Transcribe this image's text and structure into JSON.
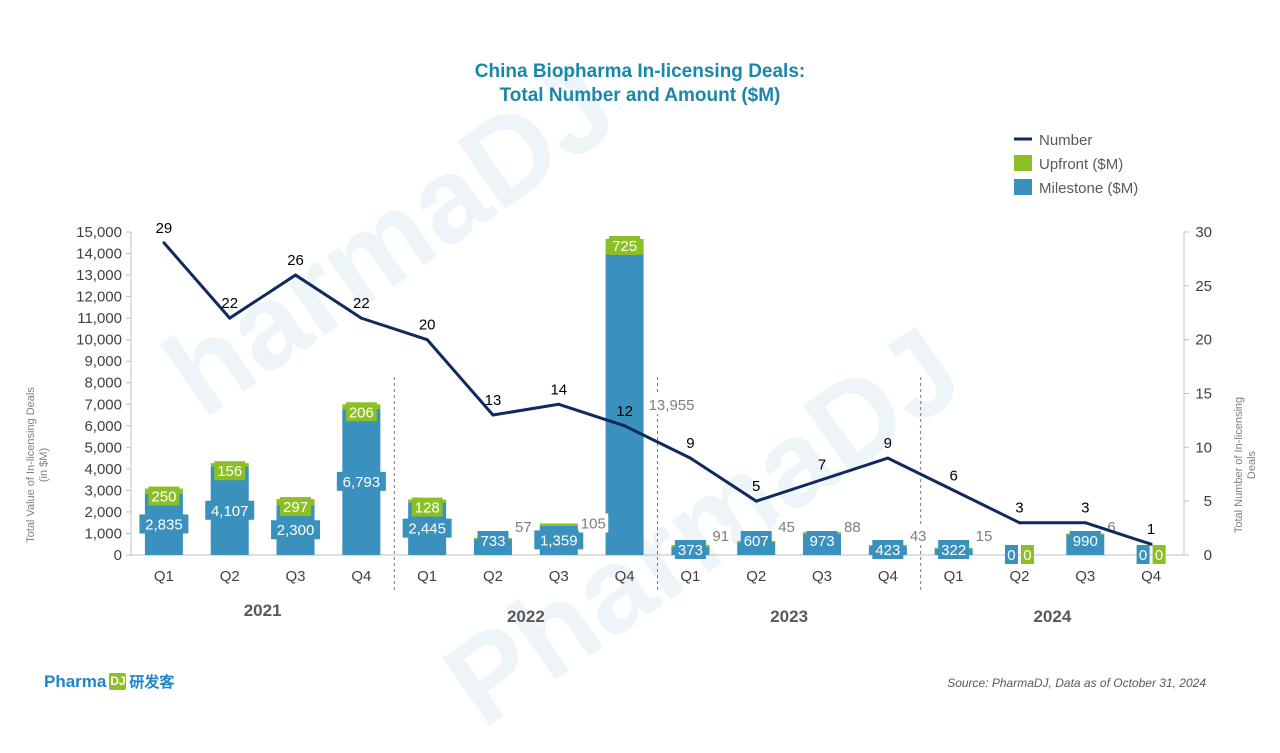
{
  "title_line1": "China Biopharma In-licensing Deals:",
  "title_line2": "Total Number and Amount ($M)",
  "source": "Source: PharmaDJ, Data as of October 31, 2024",
  "brand": {
    "name": "Pharma",
    "mark": "DJ",
    "cn": "研发客"
  },
  "colors": {
    "milestone": "#3a91bd",
    "upfront": "#8cbf26",
    "number": "#0f2a5e",
    "title": "#1a87a8"
  },
  "chart_data": {
    "type": "bar",
    "stacked": true,
    "categories": [
      "Q1",
      "Q2",
      "Q3",
      "Q4",
      "Q1",
      "Q2",
      "Q3",
      "Q4",
      "Q1",
      "Q2",
      "Q3",
      "Q4",
      "Q1",
      "Q2",
      "Q3",
      "Q4"
    ],
    "years": [
      {
        "label": "2021",
        "start": 0,
        "end": 3
      },
      {
        "label": "2022",
        "start": 4,
        "end": 7
      },
      {
        "label": "2023",
        "start": 8,
        "end": 11
      },
      {
        "label": "2024",
        "start": 12,
        "end": 15
      }
    ],
    "series": [
      {
        "name": "Milestone ($M)",
        "axis": "left",
        "values": [
          2835,
          4107,
          2300,
          6793,
          2445,
          733,
          1359,
          13955,
          373,
          607,
          973,
          423,
          322,
          0,
          990,
          0
        ]
      },
      {
        "name": "Upfront ($M)",
        "axis": "left",
        "values": [
          250,
          156,
          297,
          206,
          128,
          57,
          105,
          725,
          91,
          45,
          88,
          43,
          15,
          0,
          6,
          0
        ]
      },
      {
        "name": "Number",
        "type": "line",
        "axis": "right",
        "values": [
          29,
          22,
          26,
          22,
          20,
          13,
          14,
          12,
          9,
          5,
          7,
          9,
          6,
          3,
          3,
          1
        ]
      }
    ],
    "ylabel": "Total Value of In-licensing Deals (in $M)",
    "y2label": "Total Number of In-licensing Deals",
    "ylim": [
      0,
      15000
    ],
    "y2lim": [
      0,
      30
    ],
    "yticks": [
      0,
      1000,
      2000,
      3000,
      4000,
      5000,
      6000,
      7000,
      8000,
      9000,
      10000,
      11000,
      12000,
      13000,
      14000,
      15000
    ],
    "y2ticks": [
      0,
      5,
      10,
      15,
      20,
      25,
      30
    ],
    "legend_position": "top-right",
    "legend": [
      "Number",
      "Upfront ($M)",
      "Milestone ($M)"
    ]
  }
}
